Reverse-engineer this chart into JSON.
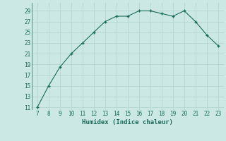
{
  "x": [
    7,
    8,
    9,
    10,
    11,
    12,
    13,
    14,
    15,
    16,
    17,
    18,
    19,
    20,
    21,
    22,
    23
  ],
  "y": [
    11,
    15,
    18.5,
    21,
    23,
    25,
    27,
    28,
    28,
    29,
    29,
    28.5,
    28,
    29,
    27,
    24.5,
    22.5
  ],
  "xlim_min": 6.5,
  "xlim_max": 23.5,
  "ylim_min": 10.5,
  "ylim_max": 30.5,
  "xticks": [
    7,
    8,
    9,
    10,
    11,
    12,
    13,
    14,
    15,
    16,
    17,
    18,
    19,
    20,
    21,
    22,
    23
  ],
  "yticks": [
    11,
    13,
    15,
    17,
    19,
    21,
    23,
    25,
    27,
    29
  ],
  "xlabel": "Humidex (Indice chaleur)",
  "line_color": "#1a6b5a",
  "bg_color": "#cce8e4",
  "grid_color": "#b8d8d4",
  "marker": "+"
}
